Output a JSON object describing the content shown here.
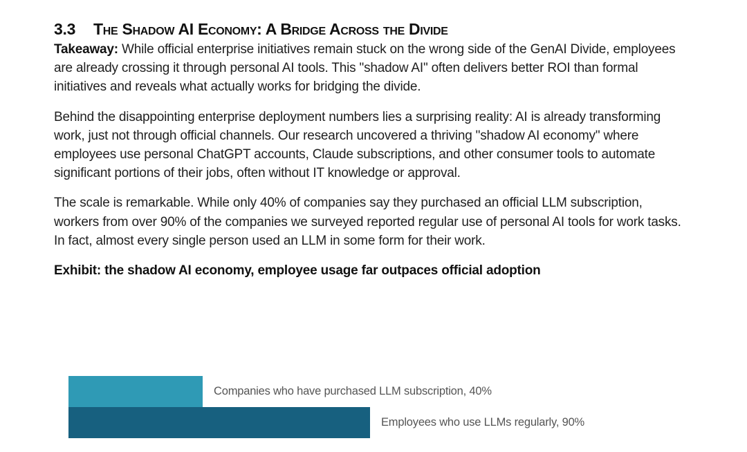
{
  "section": {
    "number": "3.3",
    "title": "The Shadow AI Economy: A Bridge Across the Divide"
  },
  "takeaway": {
    "label": "Takeaway:",
    "text": " While official enterprise initiatives remain stuck on the wrong side of the GenAI Divide, employees are already crossing it through personal AI tools. This \"shadow AI\" often delivers better ROI than formal initiatives and reveals what actually works for bridging the divide."
  },
  "paragraphs": [
    "Behind the disappointing enterprise deployment numbers lies a surprising reality: AI is already transforming work, just not through official channels. Our research uncovered a thriving \"shadow AI economy\" where employees use personal ChatGPT accounts, Claude subscriptions, and other consumer tools to automate significant portions of their jobs, often without IT knowledge or approval.",
    "The scale is remarkable. While only 40% of companies say they purchased an official LLM subscription, workers from over 90% of the companies we surveyed reported regular use of personal AI tools for work tasks. In fact, almost every single person used an LLM in some form for their work."
  ],
  "exhibit": {
    "title": "Exhibit: the shadow AI economy, employee usage far outpaces official adoption"
  },
  "chart_data": {
    "type": "bar",
    "orientation": "horizontal",
    "title": "Exhibit: the shadow AI economy, employee usage far outpaces official adoption",
    "categories": [
      "Companies who have purchased LLM subscription",
      "Employees who use LLMs regularly"
    ],
    "values": [
      40,
      90
    ],
    "unit": "%",
    "labels": [
      "Companies who have purchased LLM subscription, 40%",
      "Employees who use LLMs regularly, 90%"
    ],
    "colors": [
      "#2f9ab5",
      "#17607f"
    ],
    "xlabel": "",
    "ylabel": "",
    "grid": false,
    "legend": "none (inline data labels)"
  }
}
